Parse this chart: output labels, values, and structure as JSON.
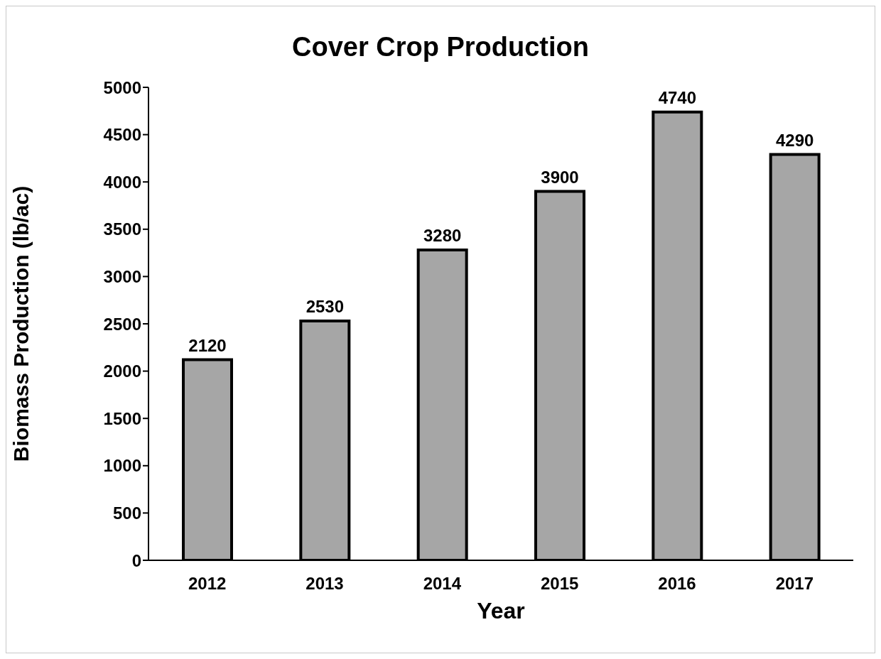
{
  "chart_data": {
    "type": "bar",
    "title": "Cover Crop Production",
    "xlabel": "Year",
    "ylabel": "Biomass Production (lb/ac)",
    "categories": [
      "2012",
      "2013",
      "2014",
      "2015",
      "2016",
      "2017"
    ],
    "values": [
      2120,
      2530,
      3280,
      3900,
      4740,
      4290
    ],
    "color": "#a6a6a6",
    "ylim": [
      0,
      5000
    ],
    "yticks": [
      0,
      500,
      1000,
      1500,
      2000,
      2500,
      3000,
      3500,
      4000,
      4500,
      5000
    ],
    "grid": false,
    "data_labels": true
  }
}
